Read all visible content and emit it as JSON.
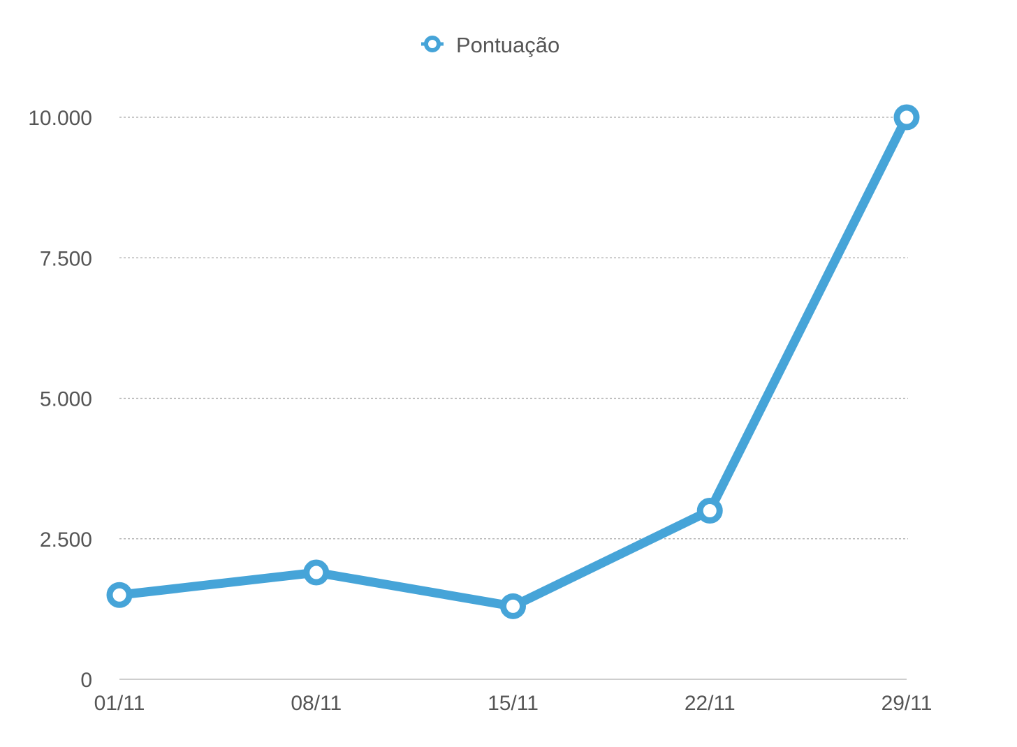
{
  "chart_data": {
    "type": "line",
    "categories": [
      "01/11",
      "08/11",
      "15/11",
      "22/11",
      "29/11"
    ],
    "series": [
      {
        "name": "Pontuação",
        "values": [
          1500,
          1900,
          1300,
          3000,
          10000
        ],
        "color": "#46a4d8"
      }
    ],
    "y_ticks": [
      0,
      2500,
      5000,
      7500,
      10000
    ],
    "y_tick_labels": [
      "0",
      "2.500",
      "5.000",
      "7.500",
      "10.000"
    ],
    "ylim": [
      0,
      10000
    ],
    "legend": {
      "position": "top-center",
      "label": "Pontuação"
    },
    "grid": true
  }
}
